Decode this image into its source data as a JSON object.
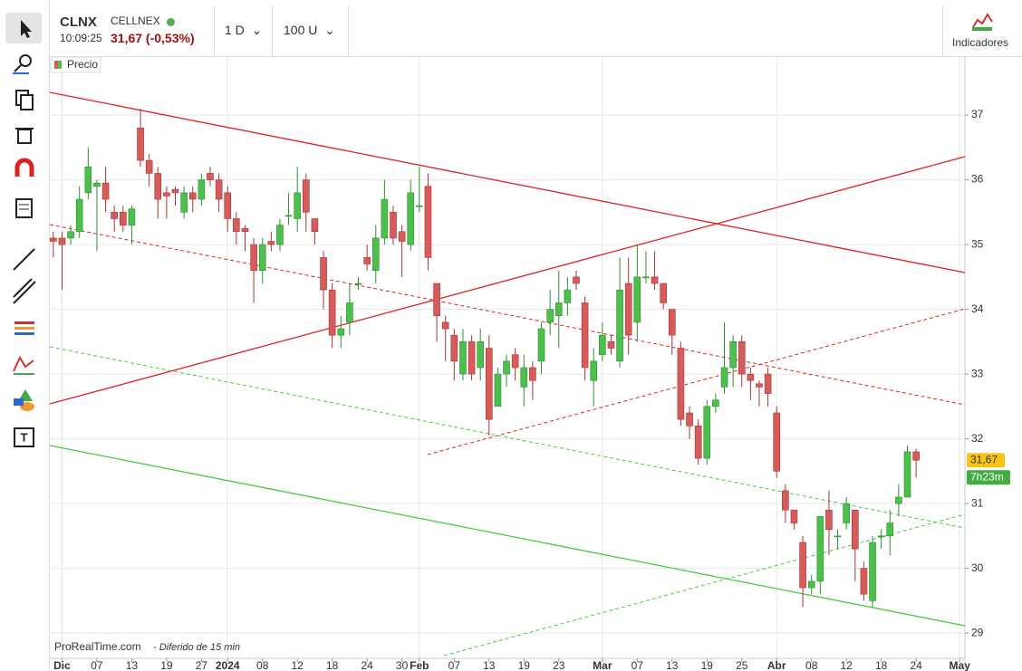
{
  "header": {
    "symbol": "CLNX",
    "name": "CELLNEX",
    "time": "10:09:25",
    "price": "31,67 (-0,53%)",
    "period": "1 D",
    "units": "100 U",
    "indicators": "Indicadores"
  },
  "chart_data": {
    "type": "candlestick",
    "legend": "Precio",
    "source": "ProRealTime.com",
    "delay": "- Diferido de 15 min",
    "open": [
      35.1,
      35.1,
      35.1,
      35.2,
      35.8,
      35.9,
      35.95,
      35.5,
      35.5,
      35.3,
      36.8,
      36.3,
      36.1,
      35.8,
      35.85,
      35.5,
      35.8,
      35.7,
      36.1,
      36.0,
      35.8,
      35.4,
      35.25,
      35.0,
      34.6,
      35.05,
      35.0,
      35.45,
      35.4,
      36.0,
      35.4,
      34.8,
      34.3,
      33.6,
      33.8,
      34.4,
      34.8,
      34.6,
      35.1,
      35.5,
      35.2,
      35.0,
      35.6,
      35.9,
      34.4,
      33.8,
      33.6,
      33.0,
      33.5,
      33.1,
      33.4,
      32.5,
      33.0,
      33.3,
      32.8,
      33.1,
      33.2,
      33.8,
      33.9,
      34.1,
      34.5,
      34.1,
      32.9,
      33.3,
      33.5,
      33.2,
      34.4,
      33.8,
      34.5,
      34.5,
      34.4,
      34.0,
      33.4,
      32.4,
      32.2,
      31.7,
      32.5,
      32.8,
      33.1,
      33.5,
      33.0,
      32.85,
      33.0,
      32.4,
      31.2,
      30.9,
      30.4,
      29.7,
      29.8,
      30.9,
      30.5,
      30.7,
      30.9,
      30.0,
      29.5,
      30.5,
      30.5,
      31.0,
      31.1,
      31.8
    ],
    "high": [
      35.2,
      35.2,
      35.3,
      35.9,
      36.5,
      36.0,
      36.2,
      35.6,
      35.6,
      35.6,
      37.1,
      36.4,
      36.2,
      35.9,
      35.9,
      35.9,
      35.9,
      36.1,
      36.2,
      36.1,
      35.9,
      35.5,
      35.3,
      35.1,
      35.1,
      35.2,
      35.4,
      35.8,
      36.2,
      36.1,
      35.4,
      34.9,
      34.4,
      33.9,
      34.4,
      34.5,
      35.0,
      35.3,
      36.0,
      35.6,
      35.3,
      36.0,
      36.2,
      36.1,
      34.4,
      33.9,
      33.7,
      33.7,
      33.6,
      33.7,
      33.6,
      33.1,
      33.3,
      33.4,
      33.3,
      33.2,
      33.8,
      34.3,
      34.6,
      34.5,
      34.6,
      34.2,
      33.4,
      33.8,
      33.6,
      34.8,
      34.8,
      35.0,
      34.9,
      34.9,
      34.4,
      34.0,
      33.5,
      32.5,
      32.3,
      32.6,
      32.7,
      33.8,
      33.6,
      33.6,
      33.1,
      32.9,
      33.1,
      32.5,
      31.3,
      30.9,
      30.5,
      29.9,
      30.8,
      31.2,
      30.6,
      31.1,
      30.9,
      30.1,
      30.5,
      30.6,
      30.9,
      31.3,
      31.9,
      31.85
    ],
    "low": [
      34.8,
      34.3,
      35.0,
      35.1,
      35.7,
      34.9,
      35.5,
      35.2,
      35.2,
      35.0,
      36.2,
      35.9,
      35.4,
      35.4,
      35.6,
      35.4,
      35.5,
      35.6,
      35.9,
      35.5,
      35.2,
      35.0,
      34.9,
      34.1,
      34.4,
      34.9,
      34.9,
      35.3,
      35.2,
      35.2,
      35.0,
      34.0,
      33.4,
      33.4,
      33.6,
      34.3,
      34.6,
      34.4,
      35.0,
      35.0,
      34.5,
      34.9,
      35.5,
      34.6,
      33.5,
      33.2,
      32.9,
      32.9,
      32.9,
      32.9,
      32.05,
      32.5,
      32.8,
      32.9,
      32.5,
      32.6,
      33.0,
      33.6,
      33.4,
      33.9,
      34.3,
      32.9,
      32.5,
      33.2,
      33.3,
      33.1,
      33.3,
      33.5,
      34.4,
      34.3,
      34.0,
      33.3,
      32.2,
      32.0,
      31.6,
      31.6,
      32.4,
      32.7,
      32.8,
      32.8,
      32.6,
      32.5,
      32.5,
      31.4,
      30.7,
      30.6,
      29.4,
      29.6,
      29.6,
      30.2,
      30.3,
      30.6,
      29.8,
      29.5,
      29.4,
      30.3,
      30.2,
      30.8,
      31.1,
      31.4
    ],
    "close": [
      35.05,
      35.0,
      35.2,
      35.7,
      36.2,
      35.95,
      35.7,
      35.4,
      35.3,
      35.55,
      36.3,
      36.1,
      35.7,
      35.75,
      35.8,
      35.8,
      35.7,
      36.0,
      36.0,
      35.7,
      35.4,
      35.2,
      35.2,
      34.6,
      35.0,
      35.0,
      35.3,
      35.45,
      35.8,
      35.5,
      35.2,
      34.3,
      33.6,
      33.7,
      34.1,
      34.4,
      34.7,
      35.1,
      35.7,
      35.1,
      35.05,
      35.8,
      35.6,
      34.8,
      33.9,
      33.7,
      33.2,
      33.5,
      33.0,
      33.5,
      32.3,
      33.0,
      33.2,
      33.1,
      33.1,
      32.9,
      33.7,
      34.0,
      34.1,
      34.3,
      34.4,
      33.1,
      33.2,
      33.6,
      33.4,
      34.3,
      33.6,
      34.5,
      34.5,
      34.4,
      34.1,
      33.6,
      32.3,
      32.2,
      31.7,
      32.5,
      32.6,
      33.1,
      33.5,
      33.0,
      32.9,
      32.8,
      32.7,
      31.5,
      30.9,
      30.7,
      29.7,
      29.8,
      30.8,
      30.6,
      30.5,
      31.0,
      30.3,
      29.6,
      30.4,
      30.5,
      30.7,
      31.1,
      31.8,
      31.67
    ],
    "up_color": "#4cbf4c",
    "down_color": "#d65c5c",
    "last_label": "31,67",
    "countdown": "7h23m",
    "xlim": [
      -0.4,
      104.6
    ],
    "xticks": [
      {
        "value": 1,
        "label": "Dic",
        "major": true
      },
      {
        "value": 5,
        "label": "07"
      },
      {
        "value": 9,
        "label": "13"
      },
      {
        "value": 13,
        "label": "19"
      },
      {
        "value": 17,
        "label": "27"
      },
      {
        "value": 20,
        "label": "2024",
        "major": true
      },
      {
        "value": 24,
        "label": "08"
      },
      {
        "value": 28,
        "label": "12"
      },
      {
        "value": 32,
        "label": "18"
      },
      {
        "value": 36,
        "label": "24"
      },
      {
        "value": 40,
        "label": "30"
      },
      {
        "value": 42,
        "label": "Feb",
        "major": true
      },
      {
        "value": 46,
        "label": "07"
      },
      {
        "value": 50,
        "label": "13"
      },
      {
        "value": 54,
        "label": "19"
      },
      {
        "value": 58,
        "label": "23"
      },
      {
        "value": 63,
        "label": "Mar",
        "major": true
      },
      {
        "value": 67,
        "label": "07"
      },
      {
        "value": 71,
        "label": "13"
      },
      {
        "value": 75,
        "label": "19"
      },
      {
        "value": 79,
        "label": "25"
      },
      {
        "value": 83,
        "label": "Abr",
        "major": true
      },
      {
        "value": 87,
        "label": "08"
      },
      {
        "value": 91,
        "label": "12"
      },
      {
        "value": 95,
        "label": "18"
      },
      {
        "value": 99,
        "label": "24"
      },
      {
        "value": 104,
        "label": "May",
        "major": true
      }
    ],
    "ylim": [
      28.61,
      37.91
    ],
    "yticks": [
      29,
      30,
      31,
      32,
      33,
      34,
      35,
      36,
      37
    ],
    "grid": true
  }
}
